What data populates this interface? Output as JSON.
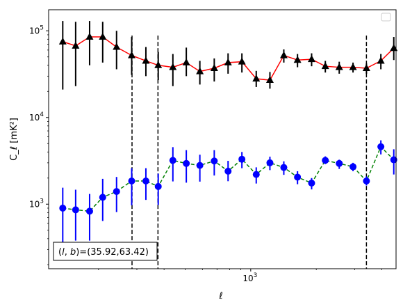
{
  "chart_data": {
    "type": "scatter",
    "x_scale": "log",
    "y_scale": "log",
    "xlim": [
      118,
      4650
    ],
    "ylim": [
      180,
      175000
    ],
    "xlabel": "ℓ",
    "ylabel": "C_ℓ [mK²]",
    "x_tick_labels": [
      {
        "value": 1000,
        "base": "10",
        "exp": "3"
      }
    ],
    "y_tick_labels": [
      {
        "value": 1000,
        "base": "10",
        "exp": "3"
      },
      {
        "value": 10000,
        "base": "10",
        "exp": "4"
      },
      {
        "value": 100000,
        "base": "10",
        "exp": "5"
      }
    ],
    "annotation": "(l, b)=(35.92,63.42)",
    "annotation_parts": {
      "open": "(",
      "l": "l",
      "sep": ", ",
      "b": "b",
      "rest": ")=(35.92,63.42)"
    },
    "legend": "empty box, top-right",
    "grid": false,
    "vertical_lines": [
      285,
      375,
      3400
    ],
    "x": [
      137,
      157,
      182,
      209,
      242,
      284,
      330,
      376,
      439,
      506,
      584,
      680,
      787,
      911,
      1060,
      1225,
      1419,
      1640,
      1904,
      2201,
      2550,
      2950,
      3400,
      3960,
      4540
    ],
    "series": [
      {
        "color": "#ff0000",
        "marker_color": "#000000",
        "marker": "triangle",
        "linestyle": "solid",
        "values": [
          75000,
          67000,
          85000,
          85000,
          65000,
          52000,
          45000,
          40000,
          38000,
          43000,
          34000,
          37000,
          43000,
          44000,
          28000,
          27000,
          52000,
          46000,
          47000,
          39000,
          38000,
          38000,
          37000,
          45000,
          63000
        ],
        "err_low": [
          54000,
          44000,
          45000,
          42000,
          29000,
          21000,
          15000,
          13000,
          15000,
          13000,
          10000,
          11000,
          11000,
          11000,
          5500,
          5500,
          9000,
          8000,
          8000,
          6000,
          6000,
          5000,
          5000,
          9000,
          17000
        ],
        "err_high": [
          55000,
          60000,
          45000,
          42000,
          35000,
          33000,
          20000,
          17000,
          16000,
          21000,
          11000,
          11000,
          12000,
          11000,
          6500,
          6500,
          9000,
          8000,
          8000,
          6000,
          6000,
          5000,
          5000,
          9000,
          22000
        ]
      },
      {
        "color": "#008000",
        "marker_color": "#0000ff",
        "marker": "circle",
        "linestyle": "dashed",
        "values": [
          900,
          860,
          830,
          1200,
          1400,
          1850,
          1850,
          1600,
          3200,
          2950,
          2800,
          3150,
          2400,
          3300,
          2200,
          3000,
          2650,
          2050,
          1750,
          3200,
          2950,
          2700,
          1850,
          4600,
          3250
        ],
        "err_low": [
          550,
          480,
          450,
          560,
          590,
          880,
          730,
          620,
          1370,
          1180,
          980,
          1010,
          560,
          700,
          470,
          530,
          470,
          350,
          270,
          300,
          400,
          300,
          210,
          850,
          1050
        ],
        "err_high": [
          650,
          610,
          480,
          760,
          660,
          750,
          750,
          650,
          1350,
          1250,
          920,
          1050,
          760,
          700,
          460,
          530,
          470,
          350,
          250,
          360,
          310,
          300,
          240,
          850,
          1050
        ]
      }
    ]
  }
}
